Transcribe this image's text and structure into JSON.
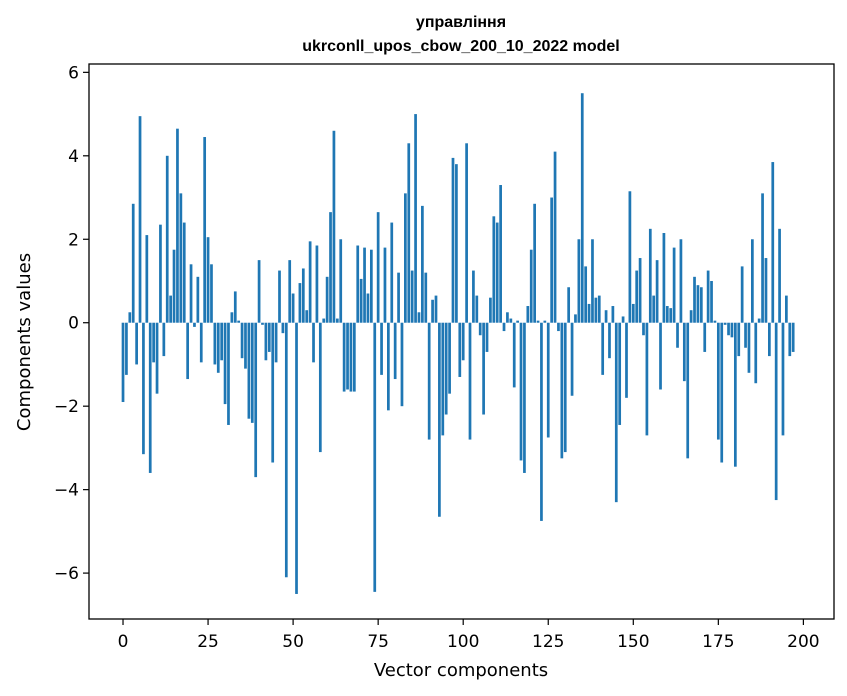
{
  "chart_data": {
    "type": "bar",
    "title_line1": "управління",
    "title_line2": "ukrconll_upos_cbow_200_10_2022 model",
    "xlabel": "Vector components",
    "ylabel": "Components values",
    "xlim": [
      -10,
      209
    ],
    "ylim": [
      -7.1,
      6.2
    ],
    "xticks": [
      0,
      25,
      50,
      75,
      100,
      125,
      150,
      175,
      200
    ],
    "xtick_labels": [
      "0",
      "25",
      "50",
      "75",
      "100",
      "125",
      "150",
      "175",
      "200"
    ],
    "yticks": [
      -6,
      -4,
      -2,
      0,
      2,
      4,
      6
    ],
    "ytick_labels": [
      "−6",
      "−4",
      "−2",
      "0",
      "2",
      "4",
      "6"
    ],
    "bar_color": "#1f77b4",
    "grid": false,
    "values": [
      -1.9,
      -1.25,
      0.25,
      2.85,
      -1.0,
      4.95,
      -3.15,
      2.1,
      -3.6,
      -0.95,
      -1.7,
      2.35,
      -0.8,
      4.0,
      0.65,
      1.75,
      4.65,
      3.1,
      2.4,
      -1.35,
      1.4,
      -0.1,
      1.1,
      -0.95,
      4.45,
      2.05,
      1.4,
      -1.0,
      -1.2,
      -0.9,
      -1.95,
      -2.45,
      0.25,
      0.75,
      0.05,
      -0.85,
      -1.1,
      -2.3,
      -2.4,
      -3.7,
      1.5,
      -0.05,
      -0.9,
      -0.7,
      -3.35,
      -0.95,
      1.25,
      -0.25,
      -6.1,
      1.5,
      0.7,
      -6.5,
      0.95,
      1.3,
      0.3,
      1.95,
      -0.95,
      1.85,
      -3.1,
      0.1,
      1.1,
      2.65,
      4.6,
      0.1,
      2.0,
      -1.65,
      -1.6,
      -1.65,
      -1.65,
      1.85,
      1.05,
      1.8,
      0.7,
      1.75,
      -6.45,
      2.65,
      -1.25,
      1.8,
      -2.1,
      2.4,
      -1.35,
      1.2,
      -2.0,
      3.1,
      4.3,
      1.25,
      5.0,
      0.25,
      2.8,
      1.2,
      -2.8,
      0.55,
      0.65,
      -4.65,
      -2.7,
      -2.2,
      -1.7,
      3.95,
      3.8,
      -1.3,
      -0.9,
      4.3,
      -2.8,
      1.25,
      0.65,
      -0.3,
      -2.2,
      -0.7,
      0.6,
      2.55,
      2.4,
      3.3,
      -0.2,
      0.25,
      0.1,
      -1.55,
      0.05,
      -3.3,
      -3.6,
      0.4,
      1.75,
      2.85,
      0.05,
      -4.75,
      0.05,
      -2.75,
      3.0,
      4.1,
      -0.2,
      -3.25,
      -3.1,
      0.85,
      -1.75,
      0.2,
      2.0,
      5.5,
      1.35,
      0.45,
      2.0,
      0.6,
      0.65,
      -1.25,
      0.3,
      -0.85,
      0.4,
      -4.3,
      -2.45,
      0.15,
      -1.8,
      3.15,
      0.45,
      1.25,
      1.55,
      -0.3,
      -2.7,
      2.25,
      0.65,
      1.5,
      -1.6,
      2.15,
      0.4,
      0.35,
      1.8,
      -0.6,
      2.0,
      -1.4,
      -3.25,
      0.3,
      1.1,
      0.9,
      0.85,
      -0.7,
      1.25,
      1.0,
      0.05,
      -2.8,
      -3.35,
      -0.05,
      -0.3,
      -0.35,
      -3.45,
      -0.8,
      1.35,
      -0.6,
      -1.2,
      2.0,
      -1.45,
      0.1,
      3.1,
      1.55,
      -0.8,
      3.85,
      -4.25,
      2.25,
      -2.7,
      0.65,
      -0.8,
      -0.7
    ]
  }
}
